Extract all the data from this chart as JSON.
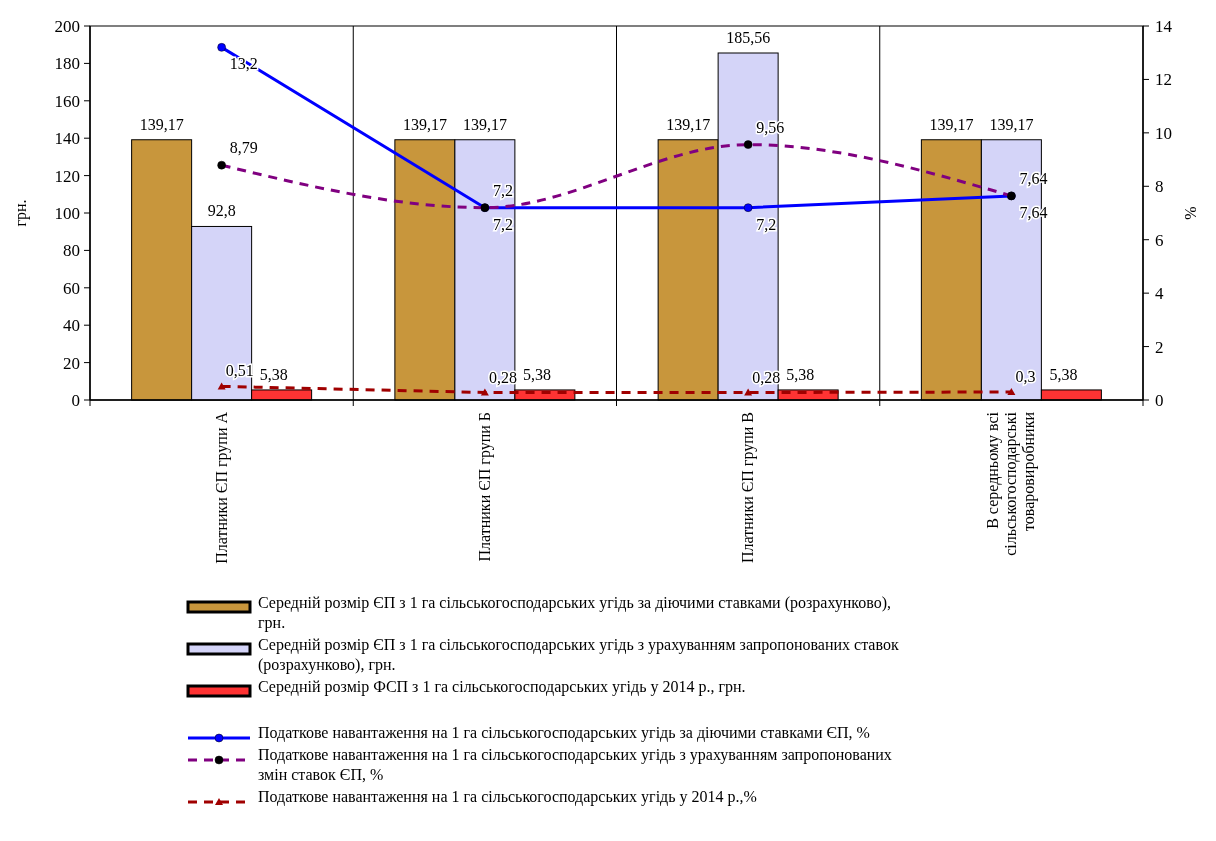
{
  "chart_data": {
    "type": "bar",
    "categories": [
      "Платники ЄП групи А",
      "Платники ЄП групи Б",
      "Платники ЄП групи В",
      "В середньому всі сільськогосподарські товаровиробники"
    ],
    "ylabel": "грн.",
    "y2label": "%",
    "ylim": [
      0,
      200
    ],
    "yticks": [
      0,
      20,
      40,
      60,
      80,
      100,
      120,
      140,
      160,
      180,
      200
    ],
    "y2lim": [
      0,
      14
    ],
    "y2ticks": [
      0,
      2,
      4,
      6,
      8,
      10,
      12,
      14
    ],
    "grid": "x",
    "legend": "bottom",
    "series": [
      {
        "name": "Середній розмір ЄП з 1 га сільськогосподарських угідь за діючими ставками (розрахунково), грн.",
        "color": "#c8963c",
        "values": [
          139.17,
          139.17,
          139.17,
          139.17
        ],
        "value_labels": [
          "139,17",
          "139,17",
          "139,17",
          "139,17"
        ]
      },
      {
        "name": "Середній розмір ЄП з 1 га сільськогосподарських угідь з урахуванням запропонованих ставок (розрахунково), грн.",
        "color": "#d4d4f8",
        "values": [
          92.8,
          139.17,
          185.56,
          139.17
        ],
        "value_labels": [
          "92,8",
          "139,17",
          "185,56",
          "139,17"
        ]
      },
      {
        "name": "Середній розмір ФСП з 1 га сільськогосподарських угідь у 2014 р., грн.",
        "color": "#ff3333",
        "values": [
          5.38,
          5.38,
          5.38,
          5.38
        ],
        "value_labels": [
          "5,38",
          "5,38",
          "5,38",
          "5,38"
        ]
      },
      {
        "name": "Податкове навантаження на 1 га сільськогосподарських угідь за діючими ставками ЄП, %",
        "type": "line",
        "axis": "y2",
        "color": "#0000ff",
        "marker": "circle",
        "line_style": "solid",
        "values": [
          13.2,
          7.2,
          7.2,
          7.64
        ],
        "value_labels": [
          "13,2",
          "7,2",
          "7,2",
          "7,64"
        ]
      },
      {
        "name": "Податкове навантаження на 1 га сільськогосподарських угідь  з урахуванням запропонованих змін ставок ЄП, %",
        "type": "line",
        "axis": "y2",
        "color": "#800080",
        "marker": "circle",
        "line_style": "dashed",
        "values": [
          8.79,
          7.2,
          9.56,
          7.64
        ],
        "value_labels": [
          "8,79",
          "7,2",
          "9,56",
          "7,64"
        ]
      },
      {
        "name": "Податкове навантаження на 1 га сільськогосподарських угідь у 2014 р.,%",
        "type": "line",
        "axis": "y2",
        "color": "#a00000",
        "marker": "triangle",
        "line_style": "dashed",
        "values": [
          0.51,
          0.28,
          0.28,
          0.3
        ],
        "value_labels": [
          "0,51",
          "0,28",
          "0,28",
          "0,3"
        ]
      }
    ]
  }
}
